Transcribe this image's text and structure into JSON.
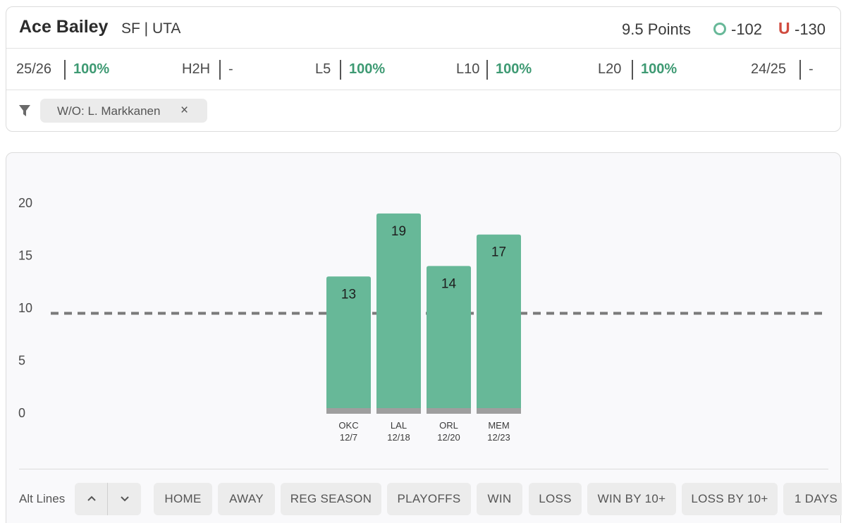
{
  "header": {
    "player_name": "Ace Bailey",
    "player_meta": "SF | UTA",
    "line": "9.5 Points",
    "over_symbol": "O",
    "over_odds": "-102",
    "under_symbol": "U",
    "under_odds": "-130"
  },
  "stats": [
    {
      "label": "25/26",
      "value": "100%"
    },
    {
      "label": "H2H",
      "value": "-"
    },
    {
      "label": "L5",
      "value": "100%"
    },
    {
      "label": "L10",
      "value": "100%"
    },
    {
      "label": "L20",
      "value": "100%"
    },
    {
      "label": "24/25",
      "value": "-"
    }
  ],
  "filter": {
    "chip_label": "W/O: L. Markkanen",
    "chip_close": "×"
  },
  "colors": {
    "bar": "#67b898",
    "bar_base": "#9e9e9e",
    "line": "#7a7a7a",
    "positive": "#3e9a73",
    "under": "#d04b3f"
  },
  "chart_data": {
    "type": "bar",
    "categories": [
      "OKC",
      "LAL",
      "ORL",
      "MEM"
    ],
    "dates": [
      "12/7",
      "12/18",
      "12/20",
      "12/23"
    ],
    "values": [
      13,
      19,
      14,
      17
    ],
    "ylim": [
      0,
      20
    ],
    "yticks": [
      0,
      5,
      10,
      15,
      20
    ],
    "reference_line": 9.5,
    "grid": false
  },
  "controls": {
    "alt_lines_label": "Alt Lines",
    "buttons": [
      "HOME",
      "AWAY",
      "REG SEASON",
      "PLAYOFFS",
      "WIN",
      "LOSS",
      "WIN BY 10+",
      "LOSS BY 10+",
      "1 DAYS"
    ]
  }
}
